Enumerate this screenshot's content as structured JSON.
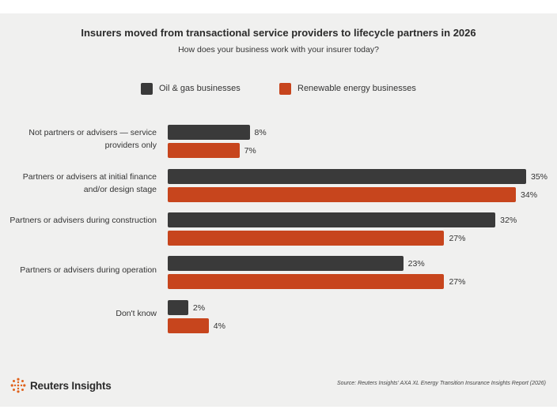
{
  "chart_data": {
    "type": "bar",
    "orientation": "horizontal",
    "title": "Insurers moved from transactional service providers to lifecycle partners in 2026",
    "subtitle": "How does your business work with your insurer today?",
    "categories": [
      "Not partners or advisers — service providers only",
      "Partners or advisers at initial finance and/or design stage",
      "Partners or advisers during construction",
      "Partners or advisers during operation",
      "Don't know"
    ],
    "series": [
      {
        "name": "Oil & gas businesses",
        "color": "#3a3a3a",
        "values": [
          8,
          35,
          32,
          23,
          2
        ]
      },
      {
        "name": "Renewable energy businesses",
        "color": "#c7451d",
        "values": [
          7,
          34,
          27,
          27,
          4
        ]
      }
    ],
    "value_suffix": "%",
    "xlim": [
      0,
      35
    ],
    "grid": false,
    "legend_position": "top"
  },
  "footer": {
    "source": "Source: Reuters Insights' AXA XL Energy Transition Insurance Insights Report (2026)",
    "logo_text": "Reuters Insights"
  }
}
